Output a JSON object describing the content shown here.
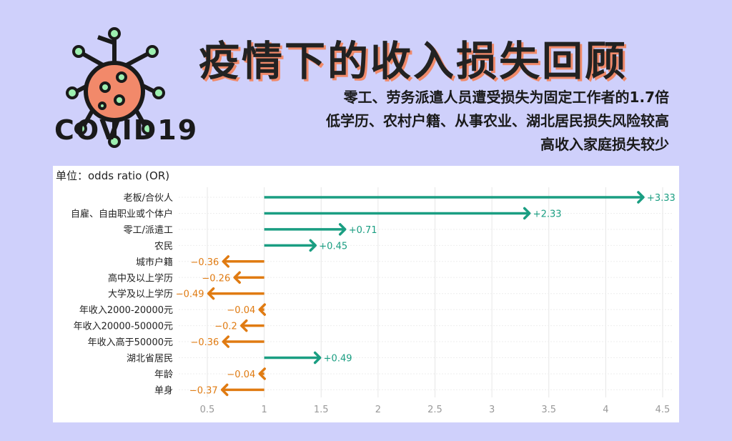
{
  "logo": {
    "text": "COVID19"
  },
  "header": {
    "title": "疫情下的收入损失回顾",
    "subtitles": [
      "零工、劳务派遣人员遭受损失为固定工作者的1.7倍",
      "低学历、农村户籍、从事农业、湖北居民损失风险较高",
      "高收入家庭损失较少"
    ]
  },
  "colors": {
    "positive": "#1a9e82",
    "negative": "#e07b12",
    "background": "#cfd0fb"
  },
  "chart_data": {
    "type": "arrow",
    "unit_label": "单位：odds ratio (OR)",
    "baseline": 1,
    "xlim": [
      0.4,
      4.55
    ],
    "xticks": [
      "0.5",
      "1",
      "1.5",
      "2",
      "2.5",
      "3",
      "3.5",
      "4",
      "4.5"
    ],
    "categories": [
      "老板/合伙人",
      "自雇、自由职业或个体户",
      "零工/派遣工",
      "农民",
      "城市户籍",
      "高中及以上学历",
      "大学及以上学历",
      "年收入2000-20000元",
      "年收入20000-50000元",
      "年收入高于50000元",
      "湖北省居民",
      "年龄",
      "单身"
    ],
    "values": [
      3.33,
      2.33,
      0.71,
      0.45,
      -0.36,
      -0.26,
      -0.49,
      -0.04,
      -0.2,
      -0.36,
      0.49,
      -0.04,
      -0.37
    ],
    "labels": [
      "+3.33",
      "+2.33",
      "+0.71",
      "+0.45",
      "−0.36",
      "−0.26",
      "−0.49",
      "−0.04",
      "−0.2",
      "−0.36",
      "+0.49",
      "−0.04",
      "−0.37"
    ]
  }
}
